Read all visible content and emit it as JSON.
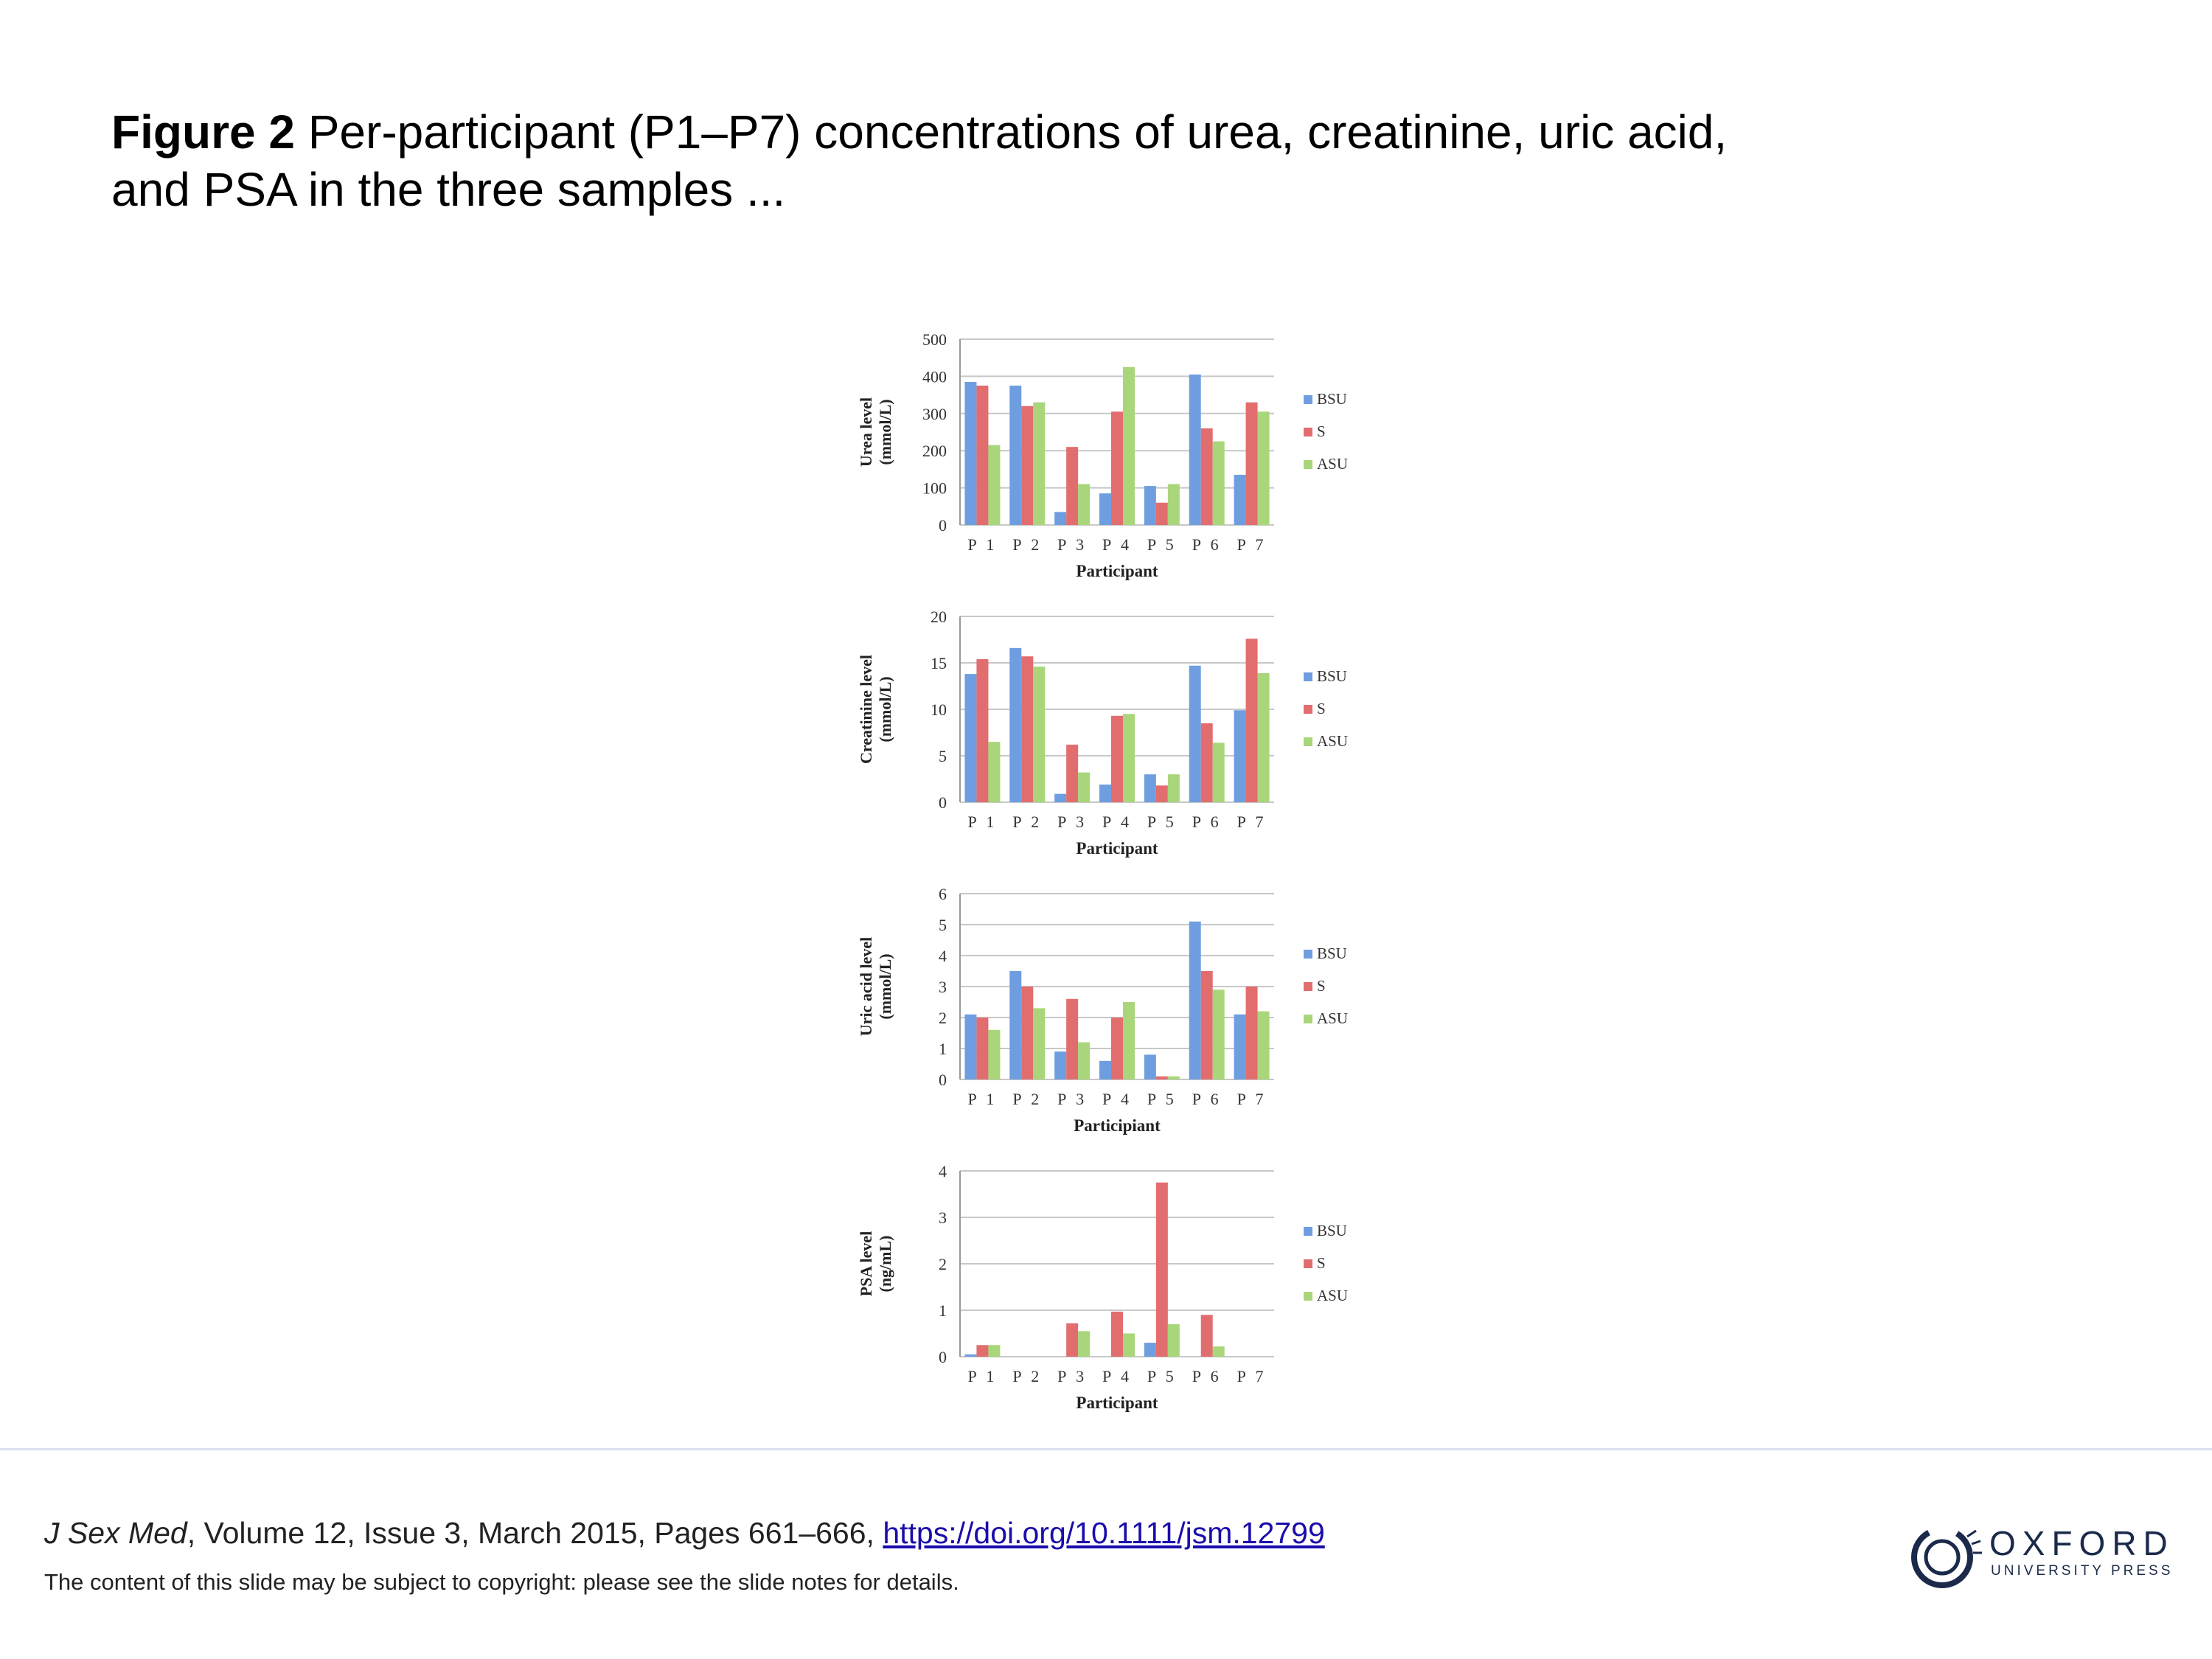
{
  "caption": {
    "label": "Figure 2",
    "text": " Per-participant (P1–P7) concentrations of urea, creatinine, uric acid, and PSA in the three samples ..."
  },
  "citation": {
    "journal": "J Sex Med",
    "details": ", Volume 12, Issue 3, March 2015, Pages 661–666, ",
    "doi_text": "https://doi.org/10.1111/jsm.12799"
  },
  "notice": "The content of this slide may be subject to copyright: please see the slide notes for details.",
  "logo": {
    "word": "OXFORD",
    "sub": "UNIVERSITY PRESS"
  },
  "colors": {
    "BSU": "#6f9ee0",
    "S": "#e26d6f",
    "ASU": "#a9d67a",
    "grid": "#c8c8c8",
    "axis": "#999999"
  },
  "chart_data": [
    {
      "type": "bar",
      "categories": [
        "P 1",
        "P 2",
        "P 3",
        "P 4",
        "P 5",
        "P 6",
        "P 7"
      ],
      "series": [
        {
          "name": "BSU",
          "values": [
            385,
            375,
            35,
            85,
            105,
            405,
            135
          ]
        },
        {
          "name": "S",
          "values": [
            375,
            320,
            210,
            305,
            60,
            260,
            330
          ]
        },
        {
          "name": "ASU",
          "values": [
            215,
            330,
            110,
            425,
            110,
            225,
            305
          ]
        }
      ],
      "xlabel": "Participant",
      "ylabel": "Urea level\n(mmol/L)",
      "ylim": [
        0,
        500
      ],
      "yticks": [
        0,
        100,
        200,
        300,
        400,
        500
      ],
      "grid": true,
      "legend": "right"
    },
    {
      "type": "bar",
      "categories": [
        "P 1",
        "P 2",
        "P 3",
        "P 4",
        "P 5",
        "P 6",
        "P 7"
      ],
      "series": [
        {
          "name": "BSU",
          "values": [
            13.8,
            16.6,
            0.9,
            1.9,
            3.0,
            14.7,
            9.9
          ]
        },
        {
          "name": "S",
          "values": [
            15.4,
            15.7,
            6.2,
            9.3,
            1.8,
            8.5,
            17.6
          ]
        },
        {
          "name": "ASU",
          "values": [
            6.5,
            14.6,
            3.2,
            9.5,
            3.0,
            6.4,
            13.9
          ]
        }
      ],
      "xlabel": "Participant",
      "ylabel": "Creatinine level\n(mmol/L)",
      "ylim": [
        0,
        20
      ],
      "yticks": [
        0,
        5,
        10,
        15,
        20
      ],
      "grid": true,
      "legend": "right"
    },
    {
      "type": "bar",
      "categories": [
        "P 1",
        "P 2",
        "P 3",
        "P 4",
        "P 5",
        "P 6",
        "P 7"
      ],
      "series": [
        {
          "name": "BSU",
          "values": [
            2.1,
            3.5,
            0.9,
            0.6,
            0.8,
            5.1,
            2.1
          ]
        },
        {
          "name": "S",
          "values": [
            2.0,
            3.0,
            2.6,
            2.0,
            0.1,
            3.5,
            3.0
          ]
        },
        {
          "name": "ASU",
          "values": [
            1.6,
            2.3,
            1.2,
            2.5,
            0.1,
            2.9,
            2.2
          ]
        }
      ],
      "xlabel": "Participiant",
      "ylabel": "Uric acid level\n(mmol/L)",
      "ylim": [
        0,
        6
      ],
      "yticks": [
        0,
        1,
        2,
        3,
        4,
        5,
        6
      ],
      "grid": true,
      "legend": "right"
    },
    {
      "type": "bar",
      "categories": [
        "P 1",
        "P 2",
        "P 3",
        "P 4",
        "P 5",
        "P 6",
        "P 7"
      ],
      "series": [
        {
          "name": "BSU",
          "values": [
            0.05,
            0,
            0,
            0,
            0.3,
            0,
            0
          ]
        },
        {
          "name": "S",
          "values": [
            0.25,
            0,
            0.72,
            0.97,
            3.75,
            0.9,
            0
          ]
        },
        {
          "name": "ASU",
          "values": [
            0.25,
            0,
            0.55,
            0.5,
            0.7,
            0.22,
            0
          ]
        }
      ],
      "xlabel": "Participant",
      "ylabel": "PSA level\n(ng/mL)",
      "ylim": [
        0,
        4
      ],
      "yticks": [
        0,
        1,
        2,
        3,
        4
      ],
      "grid": true,
      "legend": "right"
    }
  ]
}
